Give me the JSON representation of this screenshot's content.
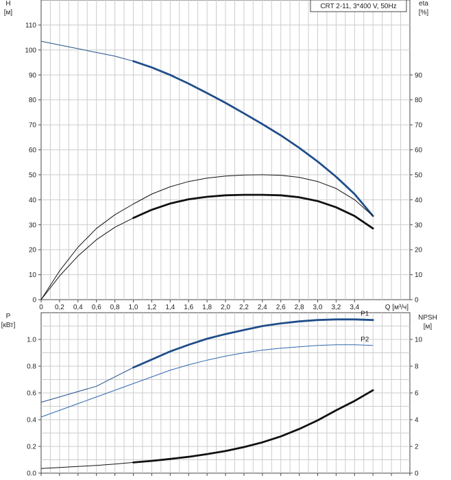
{
  "chart_data": [
    {
      "type": "line",
      "title": "CRT 2-11, 3*400 V, 50Hz",
      "xlabel": "Q [м³/ч]",
      "ylabel_left": "H\n[м]",
      "ylabel_right": "eta\n[%]",
      "xlim": [
        0,
        4.0
      ],
      "ylim_left": [
        0,
        120
      ],
      "ylim_right": [
        0,
        120
      ],
      "x_ticks": [
        "0",
        "0,2",
        "0,4",
        "0,6",
        "0,8",
        "1,0",
        "1,2",
        "1,4",
        "1,6",
        "1,8",
        "2,0",
        "2,2",
        "2,4",
        "2,6",
        "2,8",
        "3,0",
        "3,2",
        "3,4"
      ],
      "y_ticks_left": [
        "0",
        "10",
        "20",
        "30",
        "40",
        "50",
        "60",
        "70",
        "80",
        "90",
        "100",
        "110"
      ],
      "y_ticks_right": [
        "0",
        "10",
        "20",
        "30",
        "40",
        "50",
        "60",
        "70",
        "80",
        "90"
      ],
      "grid": true,
      "series": [
        {
          "id": "H",
          "color": "#1f4e8a",
          "x": [
            0,
            0.2,
            0.4,
            0.6,
            0.8,
            1.0,
            1.2,
            1.4,
            1.6,
            1.8,
            2.0,
            2.2,
            2.4,
            2.6,
            2.8,
            3.0,
            3.2,
            3.4,
            3.6
          ],
          "y": [
            103.5,
            102.0,
            100.5,
            99.0,
            97.5,
            95.5,
            93.0,
            90.0,
            86.5,
            82.7,
            78.8,
            74.6,
            70.3,
            65.8,
            60.8,
            55.3,
            49.2,
            42.3,
            33.5
          ],
          "bold_from": 1.0
        },
        {
          "id": "eta-pump",
          "color": "#111111",
          "x": [
            0,
            0.2,
            0.4,
            0.6,
            0.8,
            1.0,
            1.2,
            1.4,
            1.6,
            1.8,
            2.0,
            2.2,
            2.4,
            2.6,
            2.8,
            3.0,
            3.2,
            3.4,
            3.6
          ],
          "y": [
            0,
            11.5,
            21,
            28.5,
            34,
            38.3,
            42.3,
            45.2,
            47.3,
            48.7,
            49.5,
            49.9,
            50.0,
            49.8,
            49.0,
            47.3,
            44.5,
            40.0,
            33.5
          ],
          "bold_from": null
        },
        {
          "id": "eta-total",
          "color": "#111111",
          "x": [
            0,
            0.2,
            0.4,
            0.6,
            0.8,
            1.0,
            1.2,
            1.4,
            1.6,
            1.8,
            2.0,
            2.2,
            2.4,
            2.6,
            2.8,
            3.0,
            3.2,
            3.4,
            3.6
          ],
          "y": [
            0,
            9.5,
            17.5,
            24,
            29,
            32.7,
            36,
            38.5,
            40.2,
            41.2,
            41.8,
            42.0,
            42.0,
            41.8,
            41.0,
            39.5,
            37.0,
            33.5,
            28.5
          ],
          "bold_from": 1.0
        }
      ]
    },
    {
      "type": "line",
      "xlabel": "",
      "ylabel_left": "P\n[кВт]",
      "ylabel_right": "NPSH\n[м]",
      "xlim": [
        0,
        4.0
      ],
      "ylim_left": [
        0,
        1.2
      ],
      "ylim_right": [
        0,
        12
      ],
      "y_ticks_left": [
        "0.0",
        "0.2",
        "0.4",
        "0.6",
        "0.8",
        "1.0"
      ],
      "y_ticks_right": [
        "0",
        "2",
        "4",
        "6",
        "8",
        "10"
      ],
      "grid": true,
      "series": [
        {
          "id": "P1",
          "name": "P1",
          "color": "#1f4e8a",
          "axis": "left",
          "x": [
            0,
            0.2,
            0.4,
            0.6,
            0.8,
            1.0,
            1.2,
            1.4,
            1.6,
            1.8,
            2.0,
            2.2,
            2.4,
            2.6,
            2.8,
            3.0,
            3.2,
            3.4,
            3.6
          ],
          "y": [
            0.53,
            0.57,
            0.61,
            0.65,
            0.72,
            0.79,
            0.85,
            0.91,
            0.96,
            1.005,
            1.04,
            1.07,
            1.1,
            1.12,
            1.135,
            1.145,
            1.15,
            1.15,
            1.145
          ],
          "bold_from": 1.0
        },
        {
          "id": "P2",
          "name": "P2",
          "color": "#2e68b0",
          "axis": "left",
          "x": [
            0,
            0.2,
            0.4,
            0.6,
            0.8,
            1.0,
            1.2,
            1.4,
            1.6,
            1.8,
            2.0,
            2.2,
            2.4,
            2.6,
            2.8,
            3.0,
            3.2,
            3.4,
            3.6
          ],
          "y": [
            0.42,
            0.47,
            0.52,
            0.57,
            0.62,
            0.67,
            0.72,
            0.77,
            0.81,
            0.845,
            0.875,
            0.9,
            0.92,
            0.935,
            0.945,
            0.955,
            0.96,
            0.96,
            0.955
          ],
          "bold_from": null
        },
        {
          "id": "NPSH",
          "color": "#111111",
          "axis": "right",
          "x": [
            0,
            0.2,
            0.4,
            0.6,
            0.8,
            1.0,
            1.2,
            1.4,
            1.6,
            1.8,
            2.0,
            2.2,
            2.4,
            2.6,
            2.8,
            3.0,
            3.2,
            3.4,
            3.6
          ],
          "y": [
            0.35,
            0.42,
            0.5,
            0.58,
            0.68,
            0.8,
            0.92,
            1.06,
            1.22,
            1.42,
            1.65,
            1.95,
            2.3,
            2.75,
            3.3,
            3.95,
            4.7,
            5.4,
            6.2
          ],
          "bold_from": 1.0
        }
      ]
    }
  ]
}
